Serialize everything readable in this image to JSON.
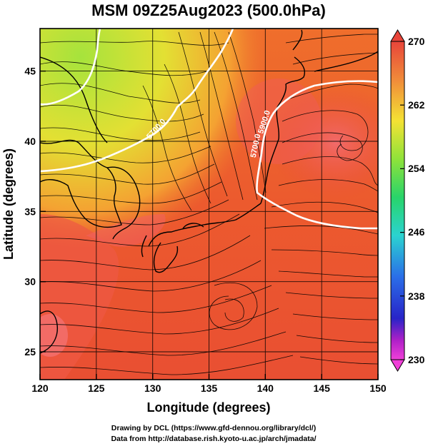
{
  "title": "MSM 09Z25Aug2023 (500.0hPa)",
  "x_axis": {
    "label": "Longitude (degrees)",
    "ticks": [
      "120",
      "125",
      "130",
      "135",
      "140",
      "145",
      "150"
    ]
  },
  "y_axis": {
    "label": "Latitude  (degrees)",
    "ticks": [
      "25",
      "30",
      "35",
      "40",
      "45"
    ]
  },
  "colorbar": {
    "labels": [
      "270",
      "262",
      "254",
      "246",
      "238",
      "230"
    ],
    "colors": [
      "#e8453a",
      "#f08a3a",
      "#f4e234",
      "#8fe23a",
      "#28d46a",
      "#2bd3d0",
      "#2a6ee8",
      "#2824c8",
      "#b020c8",
      "#f040d8"
    ]
  },
  "contour_labels": [
    "5700.0",
    "5700.0",
    "5900.0"
  ],
  "credits": {
    "line1": "Drawing by DCL (https://www.gfd-dennou.org/library/dcl/)",
    "line2": "Data from http://database.rish.kyoto-u.ac.jp/arch/jmadata/"
  },
  "map": {
    "lon_range": [
      120,
      150
    ],
    "lat_range": [
      22.5,
      47.5
    ],
    "field_colors": {
      "cold": "#9fe23a",
      "cool": "#f2d232",
      "mild": "#f4982e",
      "warm": "#ee6a2c",
      "hot": "#e84a34",
      "hotter": "#f05a5a"
    }
  }
}
